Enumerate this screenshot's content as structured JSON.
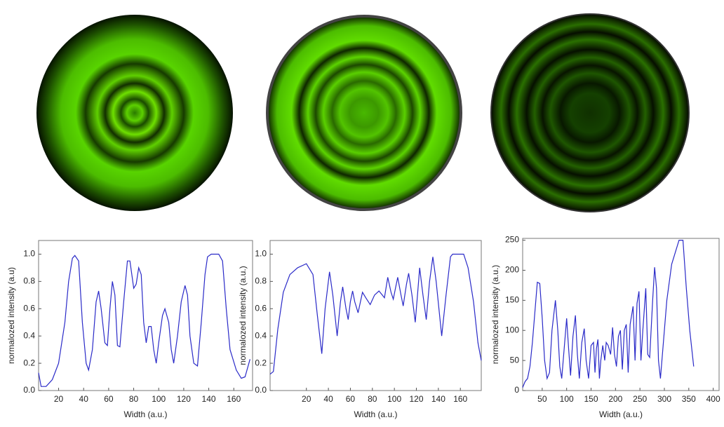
{
  "chart_data": [
    {
      "type": "line",
      "x_label": "Width (a.u.)",
      "y_label": "normalozed intensity (a.u)",
      "color": "#2a2ac8",
      "xlim": [
        4,
        175
      ],
      "ylim": [
        0,
        1.1
      ],
      "xticks": [
        20,
        40,
        60,
        80,
        100,
        120,
        140,
        160
      ],
      "yticks": [
        {
          "value": 0,
          "label": "0.0"
        },
        0.2,
        0.4,
        0.6,
        0.8,
        {
          "value": 1,
          "label": "1.0"
        }
      ],
      "x": [
        4,
        6,
        10,
        15,
        20,
        25,
        28,
        31,
        33,
        36,
        39,
        42,
        44,
        47,
        50,
        52,
        54,
        57,
        59,
        61,
        63,
        65,
        67,
        69,
        72,
        75,
        77,
        80,
        82,
        84,
        86,
        88,
        90,
        92,
        94,
        96,
        98,
        100,
        103,
        105,
        108,
        110,
        112,
        115,
        118,
        121,
        123,
        125,
        128,
        131,
        134,
        137,
        139,
        142,
        148,
        151,
        154,
        157,
        162,
        166,
        169,
        173
      ],
      "values": [
        0.13,
        0.03,
        0.03,
        0.08,
        0.2,
        0.5,
        0.8,
        0.97,
        0.99,
        0.95,
        0.5,
        0.2,
        0.15,
        0.3,
        0.65,
        0.73,
        0.6,
        0.35,
        0.33,
        0.6,
        0.8,
        0.7,
        0.33,
        0.32,
        0.65,
        0.95,
        0.95,
        0.75,
        0.78,
        0.9,
        0.85,
        0.5,
        0.35,
        0.47,
        0.47,
        0.3,
        0.2,
        0.35,
        0.55,
        0.6,
        0.5,
        0.3,
        0.2,
        0.4,
        0.65,
        0.77,
        0.7,
        0.4,
        0.2,
        0.18,
        0.5,
        0.85,
        0.98,
        1.0,
        1.0,
        0.95,
        0.6,
        0.3,
        0.15,
        0.09,
        0.1,
        0.23
      ]
    },
    {
      "type": "line",
      "x_label": "Width (a.u.)",
      "y_label": "normalozed intensity (a.u.)",
      "color": "#2a2ac8",
      "xlim": [
        -13,
        179
      ],
      "ylim": [
        0,
        1.1
      ],
      "xticks": [
        20,
        40,
        60,
        80,
        100,
        120,
        140,
        160
      ],
      "yticks": [
        {
          "value": 0,
          "label": "0.0"
        },
        0.2,
        0.4,
        0.6,
        0.8,
        {
          "value": 1,
          "label": "1.0"
        }
      ],
      "x": [
        -13,
        -10,
        -6,
        -1,
        5,
        12,
        20,
        26,
        30,
        34,
        37,
        41,
        44,
        48,
        51,
        53,
        56,
        58,
        60,
        62,
        64,
        67,
        71,
        74,
        78,
        82,
        86,
        89,
        91,
        94,
        97,
        99,
        101,
        103,
        106,
        108,
        111,
        113,
        116,
        119,
        121,
        123,
        126,
        129,
        132,
        135,
        138,
        143,
        147,
        151,
        153,
        163,
        167,
        172,
        176,
        179
      ],
      "values": [
        0.12,
        0.14,
        0.45,
        0.72,
        0.85,
        0.9,
        0.93,
        0.85,
        0.55,
        0.27,
        0.6,
        0.87,
        0.7,
        0.4,
        0.65,
        0.76,
        0.6,
        0.52,
        0.65,
        0.73,
        0.65,
        0.57,
        0.72,
        0.68,
        0.63,
        0.7,
        0.73,
        0.7,
        0.68,
        0.83,
        0.72,
        0.67,
        0.75,
        0.83,
        0.7,
        0.62,
        0.78,
        0.86,
        0.7,
        0.5,
        0.7,
        0.9,
        0.7,
        0.52,
        0.8,
        0.98,
        0.8,
        0.4,
        0.7,
        0.98,
        1.0,
        1.0,
        0.9,
        0.65,
        0.35,
        0.22
      ]
    },
    {
      "type": "line",
      "x_label": "Width (a.u.)",
      "y_label": "normalozed intensity (a.u.)",
      "color": "#2a2ac8",
      "xlim": [
        10,
        412
      ],
      "ylim": [
        0,
        253
      ],
      "xticks": [
        50,
        100,
        150,
        200,
        250,
        300,
        350,
        400
      ],
      "yticks": [
        0,
        50,
        100,
        150,
        200,
        250
      ],
      "x": [
        10,
        15,
        20,
        25,
        30,
        35,
        40,
        45,
        50,
        55,
        60,
        65,
        70,
        77,
        82,
        86,
        90,
        95,
        100,
        104,
        108,
        113,
        118,
        122,
        126,
        131,
        136,
        140,
        145,
        150,
        155,
        158,
        161,
        164,
        167,
        170,
        174,
        178,
        181,
        185,
        190,
        194,
        198,
        202,
        206,
        210,
        214,
        218,
        222,
        226,
        230,
        236,
        240,
        244,
        248,
        252,
        256,
        262,
        266,
        270,
        276,
        280,
        284,
        288,
        292,
        298,
        305,
        315,
        330,
        338,
        345,
        352,
        360
      ],
      "values": [
        5,
        15,
        20,
        40,
        80,
        130,
        180,
        178,
        120,
        50,
        20,
        30,
        100,
        150,
        100,
        40,
        20,
        70,
        120,
        70,
        25,
        90,
        125,
        60,
        20,
        80,
        103,
        50,
        20,
        75,
        80,
        30,
        70,
        85,
        20,
        50,
        75,
        50,
        80,
        75,
        60,
        105,
        60,
        40,
        90,
        100,
        35,
        100,
        110,
        30,
        110,
        140,
        50,
        145,
        165,
        50,
        100,
        170,
        60,
        55,
        150,
        205,
        170,
        50,
        20,
        80,
        150,
        210,
        250,
        250,
        170,
        100,
        40
      ]
    }
  ]
}
